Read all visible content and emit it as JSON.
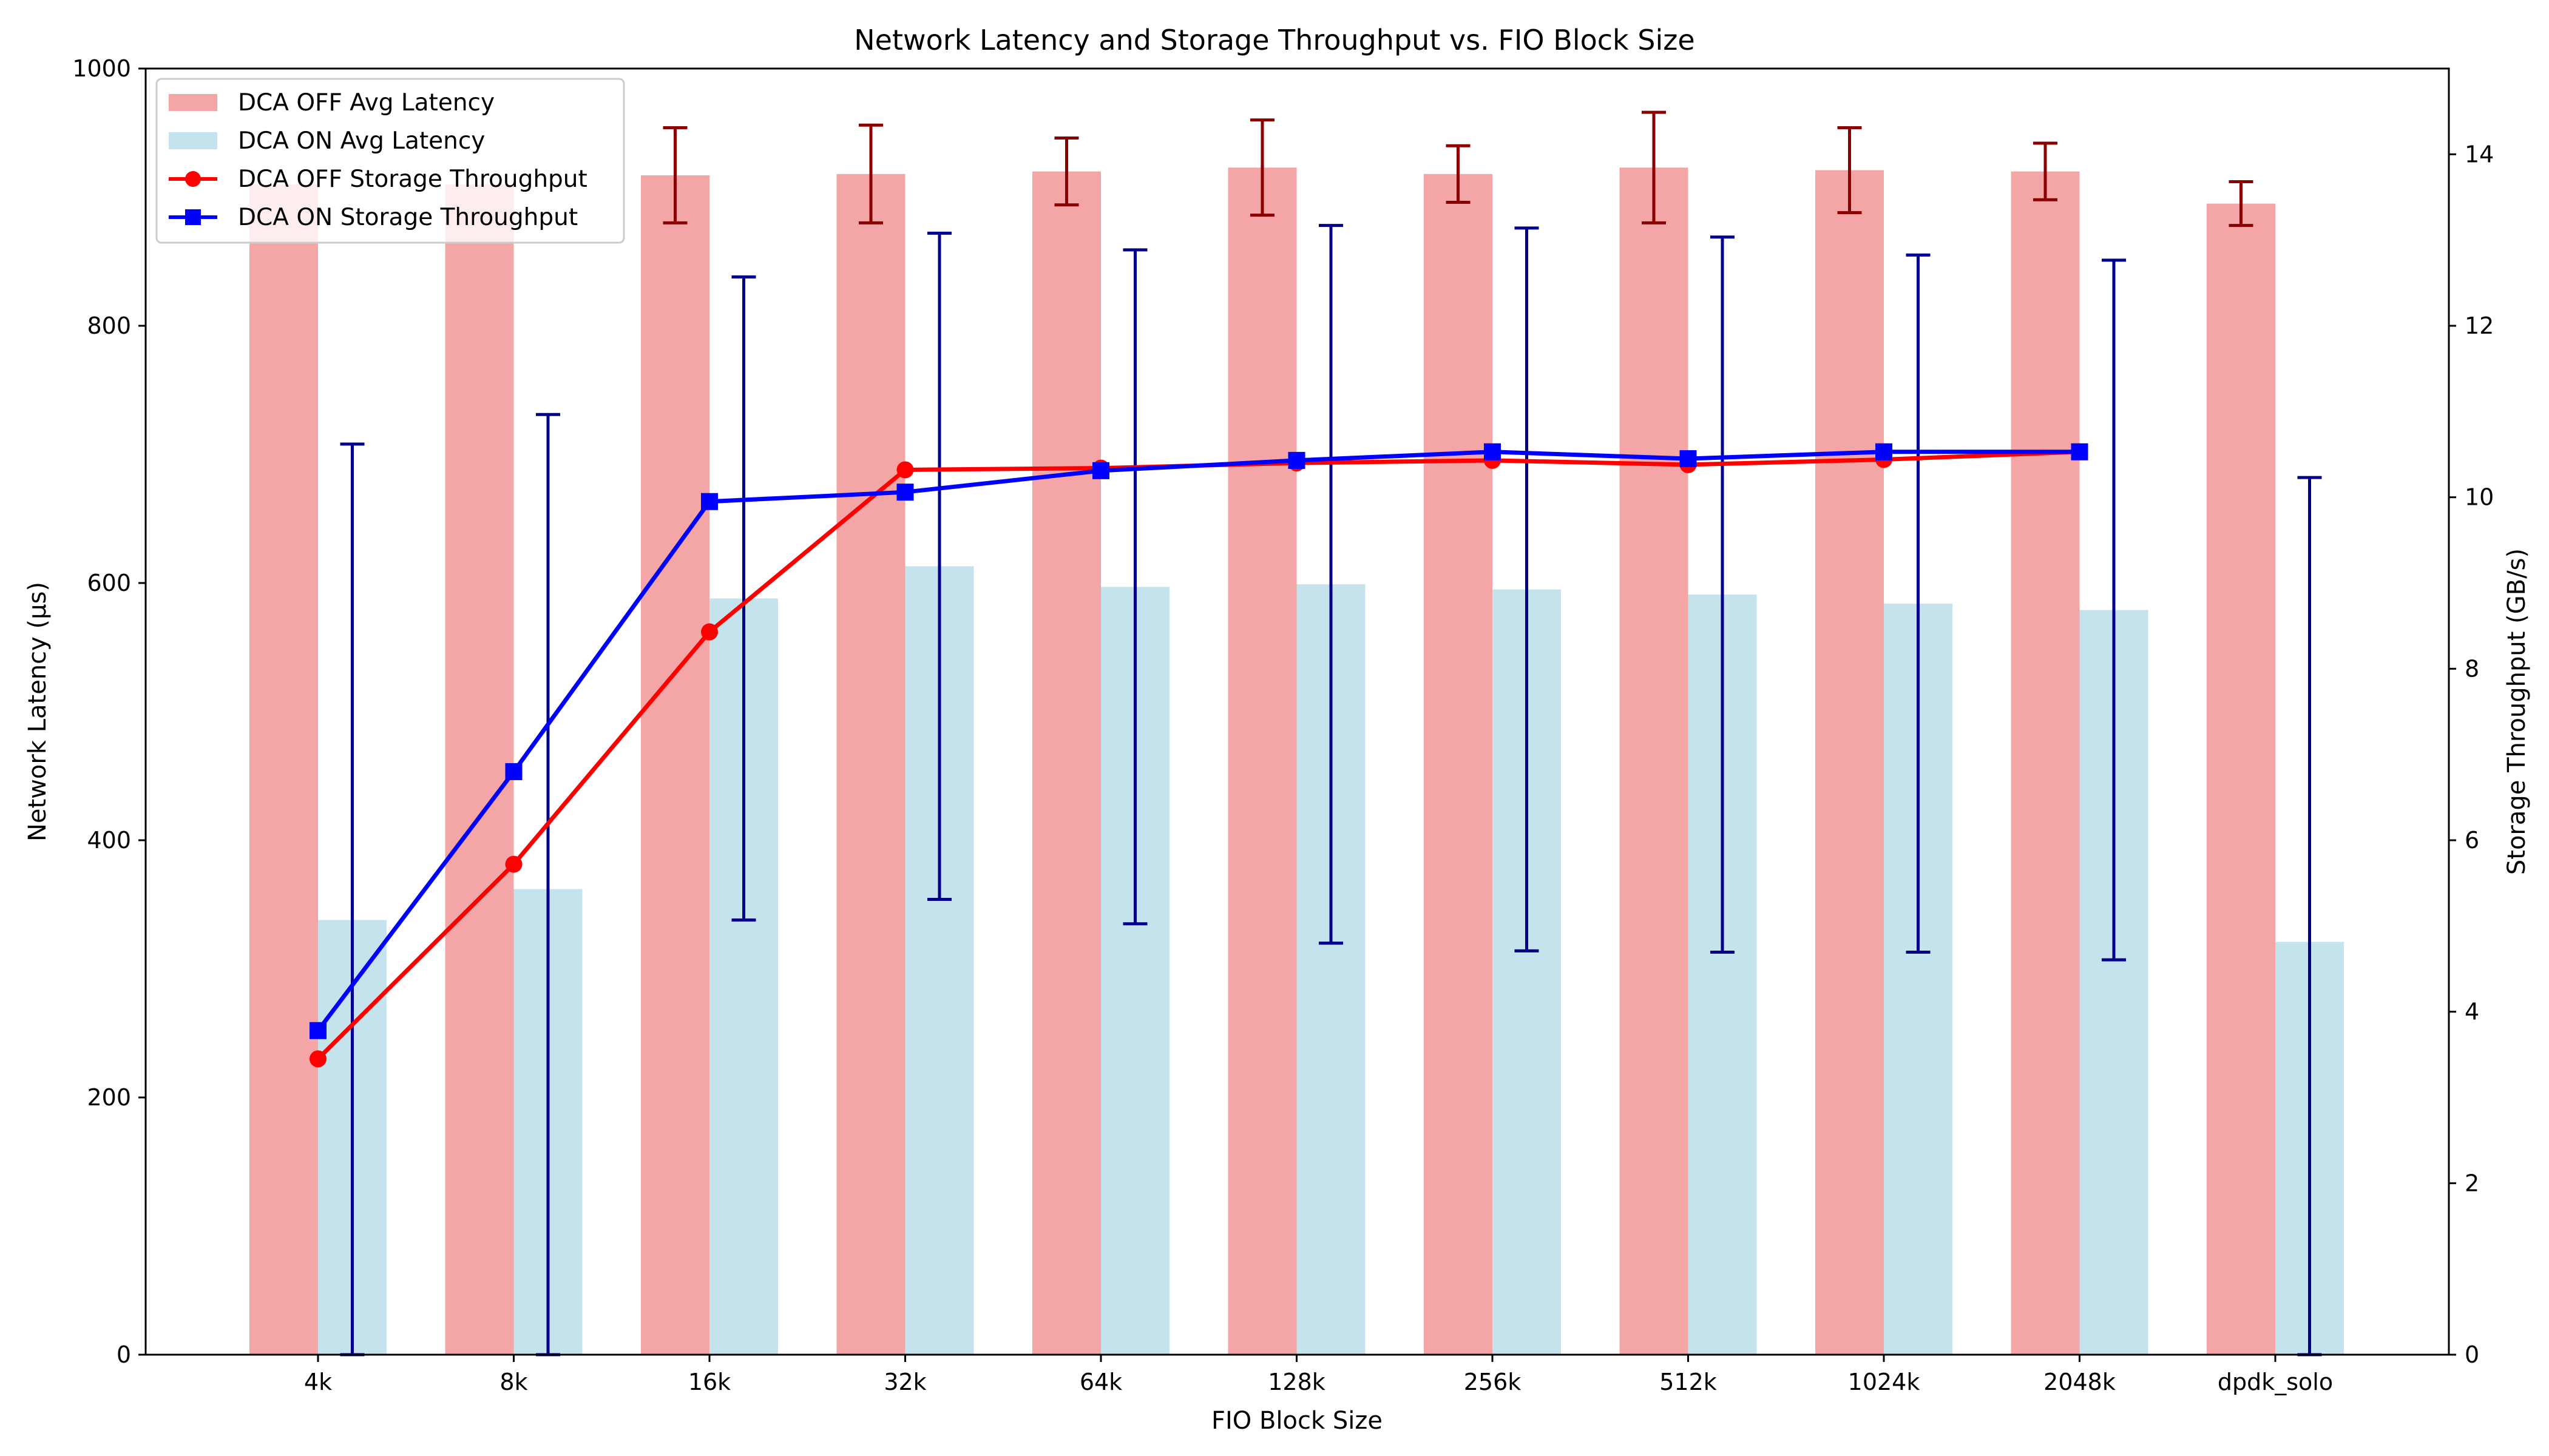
{
  "chart_data": {
    "type": "bar",
    "title": "Network Latency and Storage Throughput vs. FIO Block Size",
    "xlabel": "FIO Block Size",
    "ylabel": "Network Latency (µs)",
    "y2label": "Storage Throughput (GB/s)",
    "categories": [
      "4k",
      "8k",
      "16k",
      "32k",
      "64k",
      "128k",
      "256k",
      "512k",
      "1024k",
      "2048k",
      "dpdk_solo"
    ],
    "ylim": [
      0,
      1000
    ],
    "y2lim": [
      0,
      15
    ],
    "yticks": [
      0,
      200,
      400,
      600,
      800,
      1000
    ],
    "y2ticks": [
      0,
      2,
      4,
      6,
      8,
      10,
      12,
      14
    ],
    "grid": false,
    "legend_position": "top-left",
    "colors": {
      "dca_off_bar": "#f4a6a6",
      "dca_on_bar": "#c5e3ed",
      "dca_off_err": "#8b0000",
      "dca_on_err": "#00008b",
      "dca_off_line": "#ff0000",
      "dca_on_line": "#0000ff"
    },
    "bar_series": [
      {
        "name": "DCA OFF Avg Latency",
        "values": [
          910,
          910,
          917,
          918,
          920,
          923,
          918,
          923,
          921,
          920,
          895
        ],
        "err_upper": [
          null,
          null,
          954,
          956,
          946,
          960,
          940,
          966,
          954,
          942,
          912
        ]
      },
      {
        "name": "DCA ON Avg Latency",
        "values": [
          338,
          362,
          588,
          613,
          597,
          599,
          595,
          591,
          584,
          579,
          321
        ],
        "err_upper": [
          708,
          731,
          838,
          872,
          859,
          878,
          876,
          869,
          855,
          851,
          682
        ]
      }
    ],
    "line_series": [
      {
        "name": "DCA OFF Storage Throughput",
        "marker": "circle",
        "values": [
          3.45,
          5.72,
          8.43,
          10.32,
          10.34,
          10.4,
          10.43,
          10.38,
          10.44,
          10.53
        ]
      },
      {
        "name": "DCA ON Storage Throughput",
        "marker": "square",
        "values": [
          3.78,
          6.8,
          9.95,
          10.06,
          10.31,
          10.43,
          10.53,
          10.45,
          10.53,
          10.53
        ]
      }
    ]
  }
}
